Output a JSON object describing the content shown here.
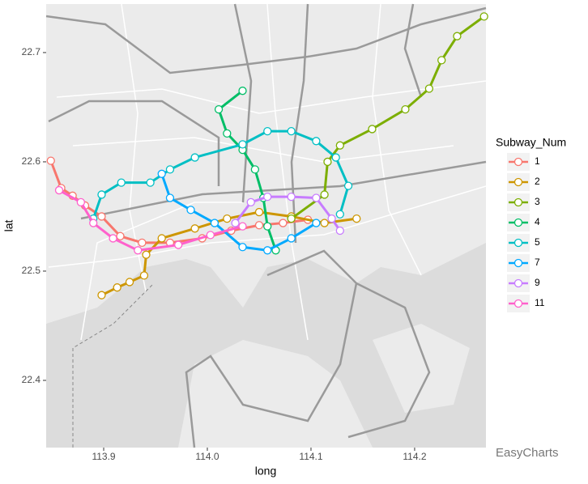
{
  "chart_data": {
    "type": "line",
    "x_label": "long",
    "y_label": "lat",
    "legend_title": "Subway_Num",
    "watermark": "EasyCharts",
    "xlim": [
      113.8445,
      114.2688
    ],
    "ylim": [
      22.3385,
      22.7444
    ],
    "xticks": [
      113.9,
      {
        "value": 114,
        "label": "114.0"
      },
      114.1,
      114.2
    ],
    "yticks": [
      22.4,
      22.5,
      22.6,
      22.7
    ],
    "legend": "right",
    "series": [
      {
        "name": "1",
        "color": "#F8766D",
        "x": [
          113.849,
          113.859,
          113.87,
          113.882,
          113.898,
          113.916,
          113.937,
          113.964,
          113.995,
          114.023,
          114.05,
          114.073,
          114.097
        ],
        "values": [
          22.601,
          22.576,
          22.569,
          22.56,
          22.55,
          22.532,
          22.526,
          22.526,
          22.53,
          22.537,
          22.542,
          22.544,
          22.547
        ]
      },
      {
        "name": "2",
        "color": "#CD9600",
        "x": [
          113.898,
          113.913,
          113.925,
          113.939,
          113.941,
          113.956,
          113.988,
          114.019,
          114.05,
          114.081,
          114.113,
          114.144
        ],
        "values": [
          22.478,
          22.485,
          22.49,
          22.496,
          22.515,
          22.53,
          22.539,
          22.548,
          22.554,
          22.55,
          22.544,
          22.548
        ]
      },
      {
        "name": "3",
        "color": "#7CAE00",
        "x": [
          114.081,
          114.113,
          114.116,
          114.128,
          114.159,
          114.191,
          114.214,
          114.226,
          114.241,
          114.267
        ],
        "values": [
          22.548,
          22.57,
          22.6,
          22.615,
          22.63,
          22.648,
          22.667,
          22.693,
          22.715,
          22.733
        ]
      },
      {
        "name": "4",
        "color": "#00BE67",
        "x": [
          114.034,
          114.011,
          114.019,
          114.034,
          114.046,
          114.054,
          114.058,
          114.066
        ],
        "values": [
          22.665,
          22.648,
          22.626,
          22.611,
          22.593,
          22.567,
          22.541,
          22.519
        ]
      },
      {
        "name": "5",
        "color": "#00BFC4",
        "x": [
          113.89,
          113.898,
          113.917,
          113.945,
          113.964,
          113.988,
          114.034,
          114.058,
          114.081,
          114.105,
          114.124,
          114.136,
          114.128
        ],
        "values": [
          22.548,
          22.57,
          22.581,
          22.581,
          22.593,
          22.604,
          22.616,
          22.628,
          22.628,
          22.619,
          22.604,
          22.578,
          22.552
        ]
      },
      {
        "name": "7",
        "color": "#00A9FF",
        "x": [
          113.956,
          113.964,
          113.984,
          114.007,
          114.034,
          114.058,
          114.081,
          114.105
        ],
        "values": [
          22.589,
          22.567,
          22.556,
          22.544,
          22.522,
          22.519,
          22.53,
          22.544
        ]
      },
      {
        "name": "9",
        "color": "#C77CFF",
        "x": [
          114.027,
          114.042,
          114.058,
          114.081,
          114.105,
          114.12,
          114.128
        ],
        "values": [
          22.544,
          22.563,
          22.568,
          22.568,
          22.567,
          22.548,
          22.537
        ]
      },
      {
        "name": "11",
        "color": "#FF61CC",
        "x": [
          113.857,
          113.878,
          113.89,
          113.909,
          113.933,
          113.972,
          114.003,
          114.034
        ],
        "values": [
          22.574,
          22.563,
          22.544,
          22.53,
          22.519,
          22.524,
          22.533,
          22.541
        ]
      }
    ]
  }
}
